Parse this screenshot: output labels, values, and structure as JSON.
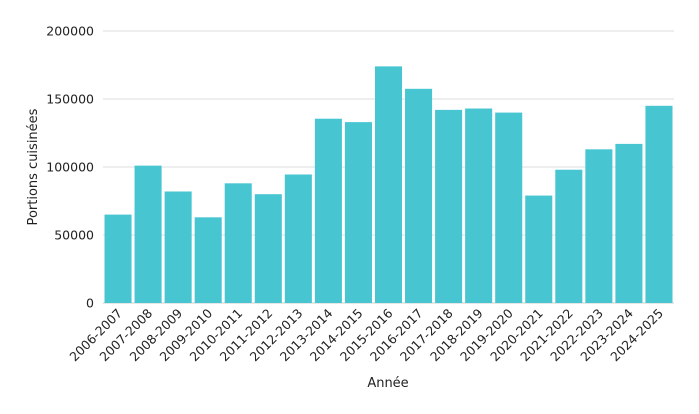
{
  "chart_data": {
    "type": "bar",
    "title": "",
    "xlabel": "Année",
    "ylabel": "Portions cuisinées",
    "categories": [
      "2006-2007",
      "2007-2008",
      "2008-2009",
      "2009-2010",
      "2010-2011",
      "2011-2012",
      "2012-2013",
      "2013-2014",
      "2014-2015",
      "2015-2016",
      "2016-2017",
      "2017-2018",
      "2018-2019",
      "2019-2020",
      "2020-2021",
      "2021-2022",
      "2022-2023",
      "2023-2024",
      "2024-2025"
    ],
    "values": [
      65000,
      101000,
      82000,
      63000,
      88000,
      80000,
      94500,
      135500,
      133000,
      174000,
      157500,
      142000,
      143000,
      140000,
      79000,
      98000,
      113000,
      117000,
      145000
    ],
    "ylim": [
      0,
      200000
    ],
    "yticks": [
      0,
      50000,
      100000,
      150000,
      200000
    ],
    "grid": true,
    "legend": "none",
    "colors": {
      "bar": "#47c6d2"
    }
  }
}
